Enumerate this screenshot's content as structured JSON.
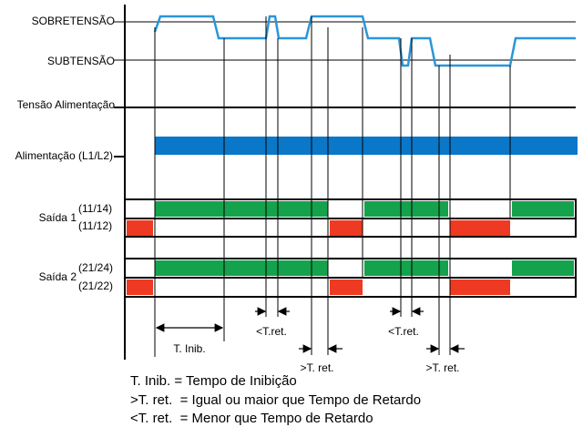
{
  "labels": {
    "overvoltage": "SOBRETENSÃO",
    "undervoltage": "SUBTENSÃO",
    "supply_voltage": "Tensão Alimentação",
    "supply": "Alimentação (L1/L2)",
    "output1": "Saída 1",
    "output1_no": "(11/14)",
    "output1_nc": "(11/12)",
    "output2": "Saída 2",
    "output2_no": "(21/24)",
    "output2_nc": "(21/22)"
  },
  "annotations": {
    "inhibit": "T. Inib.",
    "less_1": "<T.ret.",
    "less_2": "<T.ret.",
    "greater_1": ">T. ret.",
    "greater_2": ">T. ret."
  },
  "legend": [
    "T. Inib. = Tempo de Inibição",
    ">T. ret.  = Igual ou maior que Tempo de Retardo",
    "<T. ret.  = Menor que Tempo de Retardo"
  ]
}
